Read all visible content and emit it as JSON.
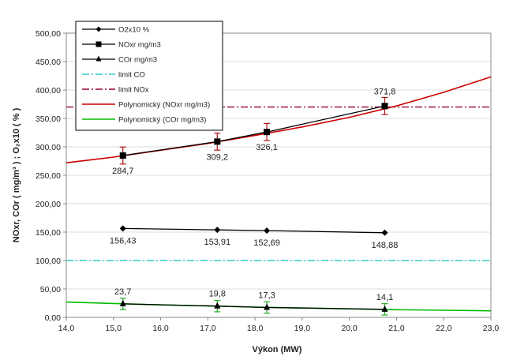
{
  "chart_data": {
    "type": "line",
    "title": "",
    "xlabel": "Výkon  (MW)",
    "ylabel": "NOxr, COr ( mg/m³ ) ; O₂x10 ( % )",
    "xlim": [
      14.0,
      23.0
    ],
    "ylim": [
      0,
      500
    ],
    "x_ticks": [
      "14,0",
      "15,0",
      "16,0",
      "17,0",
      "18,0",
      "19,0",
      "20,0",
      "21,0",
      "22,0",
      "23,0"
    ],
    "y_ticks": [
      "0,00",
      "50,00",
      "100,00",
      "150,00",
      "200,00",
      "250,00",
      "300,00",
      "350,00",
      "400,00",
      "450,00",
      "500,00"
    ],
    "grid": "horizontal",
    "legend_position": "top-left",
    "series": [
      {
        "name": "O2x10 %",
        "color": "#000000",
        "marker": "diamond",
        "x": [
          15.2,
          17.2,
          18.25,
          20.75
        ],
        "y": [
          156.43,
          153.91,
          152.69,
          148.88
        ],
        "labels": [
          "156,43",
          "153,91",
          "152,69",
          "148,88"
        ]
      },
      {
        "name": "NOxr mg/m3",
        "color": "#000000",
        "marker": "square",
        "x": [
          15.2,
          17.2,
          18.25,
          20.75
        ],
        "y": [
          284.7,
          309.2,
          326.1,
          371.8
        ],
        "labels": [
          "284,7",
          "309,2",
          "326,1",
          "371,8"
        ],
        "error": 15
      },
      {
        "name": "COr mg/m3",
        "color": "#000000",
        "marker": "triangle",
        "x": [
          15.2,
          17.2,
          18.25,
          20.75
        ],
        "y": [
          23.7,
          19.8,
          17.3,
          14.1
        ],
        "labels": [
          "23,7",
          "19,8",
          "17,3",
          "14,1"
        ],
        "error": 10
      },
      {
        "name": "limit CO",
        "color": "#33cccc",
        "style": "dashdot",
        "y_const": 100
      },
      {
        "name": "limit NOx",
        "color": "#990033",
        "style": "dashdot",
        "y_const": 370
      },
      {
        "name": "Polynomický (NOxr mg/m3)",
        "color": "#cc0000",
        "style": "solid",
        "x": [
          14.0,
          15.0,
          16.0,
          17.0,
          18.0,
          19.0,
          20.0,
          21.0,
          22.0,
          23.0
        ],
        "y": [
          272,
          282,
          294,
          306,
          320,
          335,
          352,
          372,
          396,
          423
        ]
      },
      {
        "name": "Polynomický (COr mg/m3)",
        "color": "#00bb00",
        "style": "solid",
        "x": [
          14.0,
          15.0,
          16.0,
          17.0,
          18.0,
          19.0,
          20.0,
          21.0,
          22.0,
          23.0
        ],
        "y": [
          27,
          24.5,
          22,
          20,
          18,
          16.5,
          15,
          13.5,
          12.5,
          11.5
        ]
      }
    ]
  }
}
